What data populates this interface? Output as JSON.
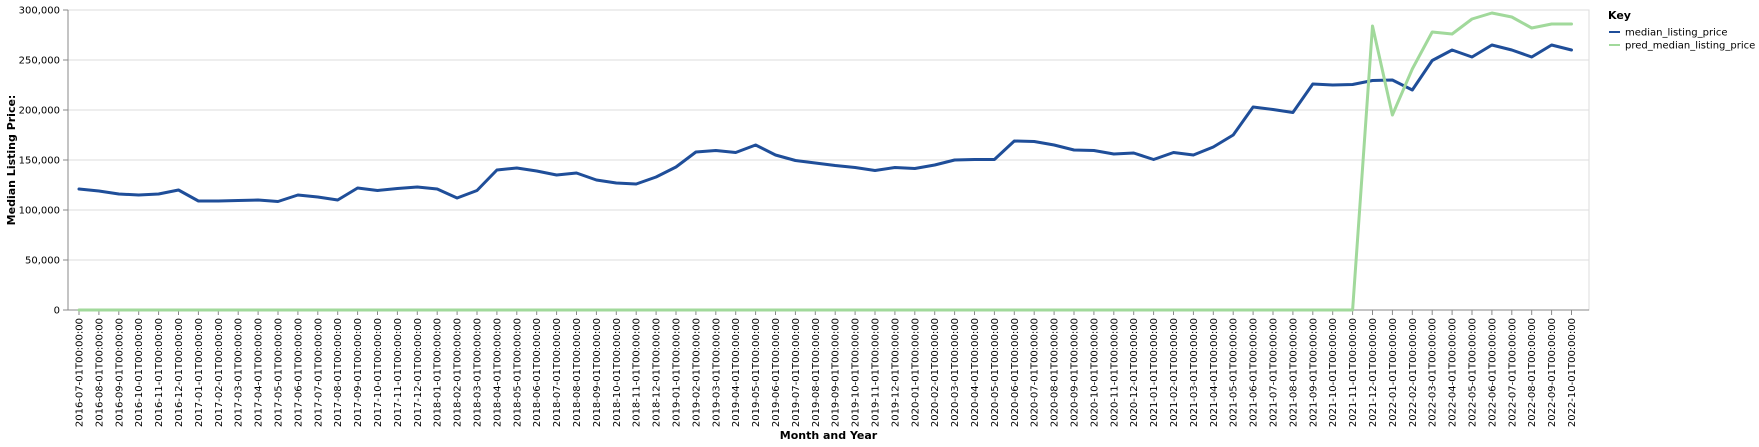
{
  "chart_data": {
    "type": "line",
    "xlabel": "Month and Year",
    "ylabel": "Median Listing Price:",
    "ylim": [
      0,
      300000
    ],
    "yticks": [
      0,
      50000,
      100000,
      150000,
      200000,
      250000,
      300000
    ],
    "ytick_labels": [
      "0",
      "50,000",
      "100,000",
      "150,000",
      "200,000",
      "250,000",
      "300,000"
    ],
    "grid": true,
    "legend": {
      "title": "Key",
      "placement": "top-right"
    },
    "x": [
      "2016-07-01T00:00:00",
      "2016-08-01T00:00:00",
      "2016-09-01T00:00:00",
      "2016-10-01T00:00:00",
      "2016-11-01T00:00:00",
      "2016-12-01T00:00:00",
      "2017-01-01T00:00:00",
      "2017-02-01T00:00:00",
      "2017-03-01T00:00:00",
      "2017-04-01T00:00:00",
      "2017-05-01T00:00:00",
      "2017-06-01T00:00:00",
      "2017-07-01T00:00:00",
      "2017-08-01T00:00:00",
      "2017-09-01T00:00:00",
      "2017-10-01T00:00:00",
      "2017-11-01T00:00:00",
      "2017-12-01T00:00:00",
      "2018-01-01T00:00:00",
      "2018-02-01T00:00:00",
      "2018-03-01T00:00:00",
      "2018-04-01T00:00:00",
      "2018-05-01T00:00:00",
      "2018-06-01T00:00:00",
      "2018-07-01T00:00:00",
      "2018-08-01T00:00:00",
      "2018-09-01T00:00:00",
      "2018-10-01T00:00:00",
      "2018-11-01T00:00:00",
      "2018-12-01T00:00:00",
      "2019-01-01T00:00:00",
      "2019-02-01T00:00:00",
      "2019-03-01T00:00:00",
      "2019-04-01T00:00:00",
      "2019-05-01T00:00:00",
      "2019-06-01T00:00:00",
      "2019-07-01T00:00:00",
      "2019-08-01T00:00:00",
      "2019-09-01T00:00:00",
      "2019-10-01T00:00:00",
      "2019-11-01T00:00:00",
      "2019-12-01T00:00:00",
      "2020-01-01T00:00:00",
      "2020-02-01T00:00:00",
      "2020-03-01T00:00:00",
      "2020-04-01T00:00:00",
      "2020-05-01T00:00:00",
      "2020-06-01T00:00:00",
      "2020-07-01T00:00:00",
      "2020-08-01T00:00:00",
      "2020-09-01T00:00:00",
      "2020-10-01T00:00:00",
      "2020-11-01T00:00:00",
      "2020-12-01T00:00:00",
      "2021-01-01T00:00:00",
      "2021-02-01T00:00:00",
      "2021-03-01T00:00:00",
      "2021-04-01T00:00:00",
      "2021-05-01T00:00:00",
      "2021-06-01T00:00:00",
      "2021-07-01T00:00:00",
      "2021-08-01T00:00:00",
      "2021-09-01T00:00:00",
      "2021-10-01T00:00:00",
      "2021-11-01T00:00:00",
      "2021-12-01T00:00:00",
      "2022-01-01T00:00:00",
      "2022-02-01T00:00:00",
      "2022-03-01T00:00:00",
      "2022-04-01T00:00:00",
      "2022-05-01T00:00:00",
      "2022-06-01T00:00:00",
      "2022-07-01T00:00:00",
      "2022-08-01T00:00:00",
      "2022-09-01T00:00:00",
      "2022-10-01T00:00:00"
    ],
    "series": [
      {
        "name": "median_listing_price",
        "color": "#1f4e99",
        "values": [
          121000,
          119000,
          116000,
          115000,
          116000,
          120000,
          109000,
          109000,
          109500,
          110000,
          108500,
          115000,
          113000,
          110000,
          122000,
          119500,
          121500,
          123000,
          121000,
          112000,
          119500,
          140000,
          142000,
          139000,
          135000,
          137000,
          130000,
          127000,
          126000,
          133000,
          143000,
          158000,
          159500,
          157500,
          165000,
          155000,
          149500,
          147000,
          144500,
          142500,
          139500,
          142500,
          141500,
          145000,
          150000,
          150500,
          150500,
          169000,
          168500,
          165000,
          160000,
          159500,
          156000,
          157000,
          150500,
          157500,
          155000,
          163000,
          175000,
          203000,
          200500,
          197500,
          226000,
          225000,
          225500,
          229500,
          230000,
          220000,
          249500,
          260000,
          253000,
          265000,
          260000,
          253000,
          265000,
          260000
        ]
      },
      {
        "name": "pred_median_listing_price",
        "color": "#a1d99b",
        "values": [
          0,
          0,
          0,
          0,
          0,
          0,
          0,
          0,
          0,
          0,
          0,
          0,
          0,
          0,
          0,
          0,
          0,
          0,
          0,
          0,
          0,
          0,
          0,
          0,
          0,
          0,
          0,
          0,
          0,
          0,
          0,
          0,
          0,
          0,
          0,
          0,
          0,
          0,
          0,
          0,
          0,
          0,
          0,
          0,
          0,
          0,
          0,
          0,
          0,
          0,
          0,
          0,
          0,
          0,
          0,
          0,
          0,
          0,
          0,
          0,
          0,
          0,
          0,
          0,
          0,
          284000,
          195000,
          241000,
          278000,
          276000,
          291000,
          297000,
          293000,
          282000,
          286000,
          286000
        ]
      }
    ]
  }
}
